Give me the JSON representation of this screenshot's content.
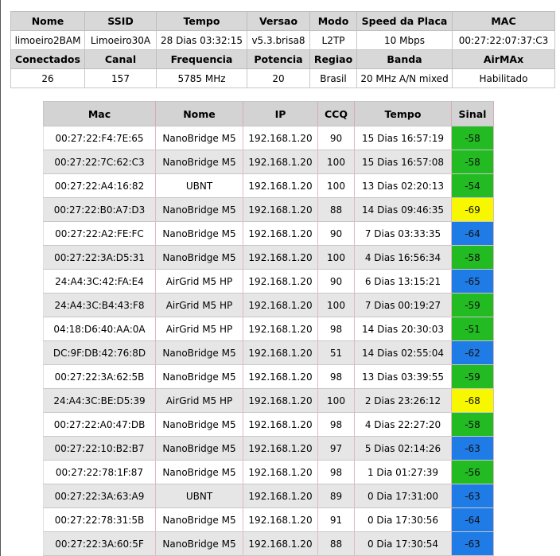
{
  "info": {
    "headers1": [
      "Nome",
      "SSID",
      "Tempo",
      "Versao",
      "Modo",
      "Speed da Placa",
      "MAC"
    ],
    "values1": [
      "limoeiro2BAM",
      "Limoeiro30A",
      "28 Dias 03:32:15",
      "v5.3.brisa8",
      "L2TP",
      "10 Mbps",
      "00:27:22:07:37:C3"
    ],
    "headers2": [
      "Conectados",
      "Canal",
      "Frequencia",
      "Potencia",
      "Regiao",
      "Banda",
      "AirMAx"
    ],
    "values2": [
      "26",
      "157",
      "5785 MHz",
      "20",
      "Brasil",
      "20 MHz A/N mixed",
      "Habilitado"
    ]
  },
  "stations": {
    "columns": [
      "Mac",
      "Nome",
      "IP",
      "CCQ",
      "Tempo",
      "Sinal"
    ],
    "signal_colors": {
      "green": "#22bb22",
      "blue": "#1f7be6",
      "yellow": "#f7f700"
    },
    "rows": [
      {
        "mac": "00:27:22:F4:7E:65",
        "nome": "NanoBridge M5",
        "ip": "192.168.1.20",
        "ccq": "90",
        "tempo": "15 Dias 16:57:19",
        "sinal": "-58",
        "color": "#22bb22"
      },
      {
        "mac": "00:27:22:7C:62:C3",
        "nome": "NanoBridge M5",
        "ip": "192.168.1.20",
        "ccq": "100",
        "tempo": "15 Dias 16:57:08",
        "sinal": "-58",
        "color": "#22bb22"
      },
      {
        "mac": "00:27:22:A4:16:82",
        "nome": "UBNT",
        "ip": "192.168.1.20",
        "ccq": "100",
        "tempo": "13 Dias 02:20:13",
        "sinal": "-54",
        "color": "#22bb22"
      },
      {
        "mac": "00:27:22:B0:A7:D3",
        "nome": "NanoBridge M5",
        "ip": "192.168.1.20",
        "ccq": "88",
        "tempo": "14 Dias 09:46:35",
        "sinal": "-69",
        "color": "#f7f700"
      },
      {
        "mac": "00:27:22:A2:FE:FC",
        "nome": "NanoBridge M5",
        "ip": "192.168.1.20",
        "ccq": "90",
        "tempo": "7 Dias 03:33:35",
        "sinal": "-64",
        "color": "#1f7be6"
      },
      {
        "mac": "00:27:22:3A:D5:31",
        "nome": "NanoBridge M5",
        "ip": "192.168.1.20",
        "ccq": "100",
        "tempo": "4 Dias 16:56:34",
        "sinal": "-58",
        "color": "#22bb22"
      },
      {
        "mac": "24:A4:3C:42:FA:E4",
        "nome": "AirGrid M5 HP",
        "ip": "192.168.1.20",
        "ccq": "90",
        "tempo": "6 Dias 13:15:21",
        "sinal": "-65",
        "color": "#1f7be6"
      },
      {
        "mac": "24:A4:3C:B4:43:F8",
        "nome": "AirGrid M5 HP",
        "ip": "192.168.1.20",
        "ccq": "100",
        "tempo": "7 Dias 00:19:27",
        "sinal": "-59",
        "color": "#22bb22"
      },
      {
        "mac": "04:18:D6:40:AA:0A",
        "nome": "AirGrid M5 HP",
        "ip": "192.168.1.20",
        "ccq": "98",
        "tempo": "14 Dias 20:30:03",
        "sinal": "-51",
        "color": "#22bb22"
      },
      {
        "mac": "DC:9F:DB:42:76:8D",
        "nome": "NanoBridge M5",
        "ip": "192.168.1.20",
        "ccq": "51",
        "tempo": "14 Dias 02:55:04",
        "sinal": "-62",
        "color": "#1f7be6"
      },
      {
        "mac": "00:27:22:3A:62:5B",
        "nome": "NanoBridge M5",
        "ip": "192.168.1.20",
        "ccq": "98",
        "tempo": "13 Dias 03:39:55",
        "sinal": "-59",
        "color": "#22bb22"
      },
      {
        "mac": "24:A4:3C:BE:D5:39",
        "nome": "AirGrid M5 HP",
        "ip": "192.168.1.20",
        "ccq": "100",
        "tempo": "2 Dias 23:26:12",
        "sinal": "-68",
        "color": "#f7f700"
      },
      {
        "mac": "00:27:22:A0:47:DB",
        "nome": "NanoBridge M5",
        "ip": "192.168.1.20",
        "ccq": "98",
        "tempo": "4 Dias 22:27:20",
        "sinal": "-58",
        "color": "#22bb22"
      },
      {
        "mac": "00:27:22:10:B2:B7",
        "nome": "NanoBridge M5",
        "ip": "192.168.1.20",
        "ccq": "97",
        "tempo": "5 Dias 02:14:26",
        "sinal": "-63",
        "color": "#1f7be6"
      },
      {
        "mac": "00:27:22:78:1F:87",
        "nome": "NanoBridge M5",
        "ip": "192.168.1.20",
        "ccq": "98",
        "tempo": "1 Dia 01:27:39",
        "sinal": "-56",
        "color": "#22bb22"
      },
      {
        "mac": "00:27:22:3A:63:A9",
        "nome": "UBNT",
        "ip": "192.168.1.20",
        "ccq": "89",
        "tempo": "0 Dia 17:31:00",
        "sinal": "-63",
        "color": "#1f7be6"
      },
      {
        "mac": "00:27:22:78:31:5B",
        "nome": "NanoBridge M5",
        "ip": "192.168.1.20",
        "ccq": "91",
        "tempo": "0 Dia 17:30:56",
        "sinal": "-64",
        "color": "#1f7be6"
      },
      {
        "mac": "00:27:22:3A:60:5F",
        "nome": "NanoBridge M5",
        "ip": "192.168.1.20",
        "ccq": "88",
        "tempo": "0 Dia 17:30:54",
        "sinal": "-63",
        "color": "#1f7be6"
      }
    ]
  }
}
